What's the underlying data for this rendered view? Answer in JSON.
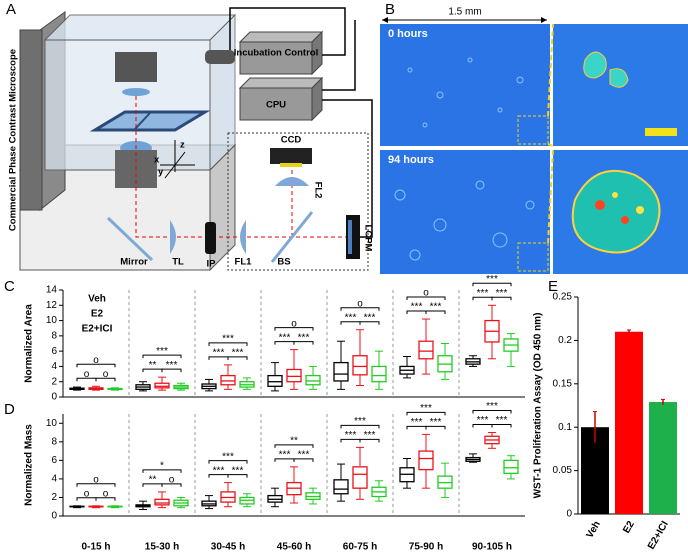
{
  "panel_labels": {
    "a": "A",
    "b": "B",
    "c": "C",
    "d": "D",
    "e": "E"
  },
  "diagram": {
    "microscope": "Commercial Phase Contrast Microscope",
    "incubation": "Incubation Control",
    "cpu": "CPU",
    "ccd": "CCD",
    "fl2": "FL2",
    "lcpm": "LCPM",
    "mirror": "Mirror",
    "tl": "TL",
    "ip": "IP",
    "fl1": "FL1",
    "bs": "BS",
    "x": "x",
    "y": "y",
    "z": "z"
  },
  "images": {
    "scale": "1.5 mm",
    "t0": "0 hours",
    "t1": "94 hours"
  },
  "chart_data": [
    {
      "type": "box",
      "ylabel": "Normalized Area",
      "ylim": [
        0,
        14
      ],
      "yticks": [
        0,
        2,
        4,
        6,
        8,
        10,
        12,
        14
      ],
      "series": [
        {
          "name": "Veh",
          "color": "#000000",
          "boxes": [
            [
              0.9,
              1,
              1.05,
              1.15,
              1.3
            ],
            [
              0.8,
              1,
              1.3,
              1.6,
              2
            ],
            [
              0.8,
              1.1,
              1.4,
              1.7,
              2.3
            ],
            [
              0.8,
              1.4,
              2,
              2.8,
              4.5
            ],
            [
              1,
              2.1,
              3,
              4.5,
              7.3
            ],
            [
              2.5,
              3,
              3.5,
              4,
              5.3
            ],
            [
              4,
              4.3,
              4.6,
              5,
              5.4
            ]
          ]
        },
        {
          "name": "E2",
          "color": "#e8141c",
          "boxes": [
            [
              0.9,
              1,
              1.1,
              1.2,
              1.4
            ],
            [
              0.9,
              1.2,
              1.4,
              1.8,
              2.6
            ],
            [
              1,
              1.6,
              2.1,
              2.8,
              4.2
            ],
            [
              1,
              2,
              2.7,
              3.6,
              6.2
            ],
            [
              1.5,
              2.9,
              4,
              5.4,
              8.8
            ],
            [
              3,
              5,
              6,
              7.3,
              10.2
            ],
            [
              5,
              7.2,
              8.6,
              10,
              12
            ]
          ]
        },
        {
          "name": "E2+ICI",
          "color": "#22cc22",
          "boxes": [
            [
              0.9,
              1,
              1.05,
              1.1,
              1.2
            ],
            [
              0.9,
              1.1,
              1.3,
              1.5,
              1.8
            ],
            [
              1,
              1.3,
              1.6,
              2,
              2.5
            ],
            [
              1,
              1.6,
              2.1,
              2.8,
              4
            ],
            [
              1,
              2,
              2.8,
              4,
              6
            ],
            [
              2.3,
              3.3,
              4.3,
              5.4,
              7
            ],
            [
              4,
              6,
              6.8,
              7.6,
              8.3
            ]
          ]
        }
      ],
      "significance": [
        [
          "o",
          "o",
          "o"
        ],
        [
          "***",
          "**",
          "***"
        ],
        [
          "***",
          "***",
          "***"
        ],
        [
          "o",
          "***",
          "***"
        ],
        [
          "o",
          "***",
          "***"
        ],
        [
          "o",
          "***",
          "***"
        ],
        [
          "***",
          "***",
          "***"
        ]
      ]
    },
    {
      "type": "box",
      "ylabel": "Normalized Mass",
      "ylim": [
        0,
        11
      ],
      "yticks": [
        0,
        2,
        4,
        6,
        8,
        10
      ],
      "categories": [
        "0-15 h",
        "15-30 h",
        "30-45 h",
        "45-60 h",
        "60-75 h",
        "75-90 h",
        "90-105 h"
      ],
      "series": [
        {
          "color": "#000000",
          "boxes": [
            [
              0.9,
              1,
              1,
              1.05,
              1.1
            ],
            [
              0.7,
              1,
              1.1,
              1.2,
              1.6
            ],
            [
              0.8,
              1.1,
              1.3,
              1.6,
              2.2
            ],
            [
              1,
              1.5,
              1.8,
              2.2,
              3
            ],
            [
              1.6,
              2.4,
              2.9,
              3.9,
              5.6
            ],
            [
              3,
              3.7,
              4.5,
              5.2,
              6.2
            ],
            [
              5.8,
              5.9,
              6.1,
              6.3,
              6.7
            ]
          ]
        },
        {
          "color": "#e8141c",
          "boxes": [
            [
              0.9,
              1,
              1,
              1.05,
              1.1
            ],
            [
              0.9,
              1.2,
              1.4,
              1.8,
              2.6
            ],
            [
              1,
              1.5,
              2,
              2.6,
              3.6
            ],
            [
              1.4,
              2.3,
              3,
              3.6,
              5.3
            ],
            [
              1.8,
              3,
              4.5,
              5.3,
              7.4
            ],
            [
              3,
              5,
              6.2,
              7,
              8.8
            ],
            [
              7.3,
              7.8,
              8.2,
              8.6,
              9
            ]
          ]
        },
        {
          "color": "#22cc22",
          "boxes": [
            [
              0.9,
              1,
              1,
              1.05,
              1.1
            ],
            [
              0.9,
              1.1,
              1.4,
              1.7,
              2
            ],
            [
              1,
              1.3,
              1.7,
              2,
              2.4
            ],
            [
              1.3,
              1.8,
              2.1,
              2.5,
              3
            ],
            [
              1.6,
              2.1,
              2.6,
              3.1,
              3.8
            ],
            [
              2,
              3,
              3.6,
              4.3,
              5.7
            ],
            [
              4,
              4.6,
              5.2,
              6,
              6.5
            ]
          ]
        }
      ],
      "significance": [
        [
          "o",
          "o",
          "o"
        ],
        [
          "*",
          "**",
          "o"
        ],
        [
          "***",
          "***",
          "***"
        ],
        [
          "**",
          "***",
          "***"
        ],
        [
          "***",
          "***",
          "***"
        ],
        [
          "***",
          "***",
          "***"
        ],
        [
          "***",
          "***",
          "***"
        ]
      ]
    },
    {
      "type": "bar",
      "ylabel": "WST-1 Proliferation Assay  (OD 450 nm)",
      "ylim": [
        0,
        0.25
      ],
      "yticks": [
        0,
        0.05,
        0.1,
        0.15,
        0.2,
        0.25
      ],
      "categories": [
        "Veh",
        "E2",
        "E2+ICI"
      ],
      "values": [
        0.1,
        0.21,
        0.129
      ],
      "errors": [
        0.018,
        0.002,
        0.003
      ],
      "colors": [
        "#000000",
        "#ff0000",
        "#1eb04a"
      ]
    }
  ]
}
